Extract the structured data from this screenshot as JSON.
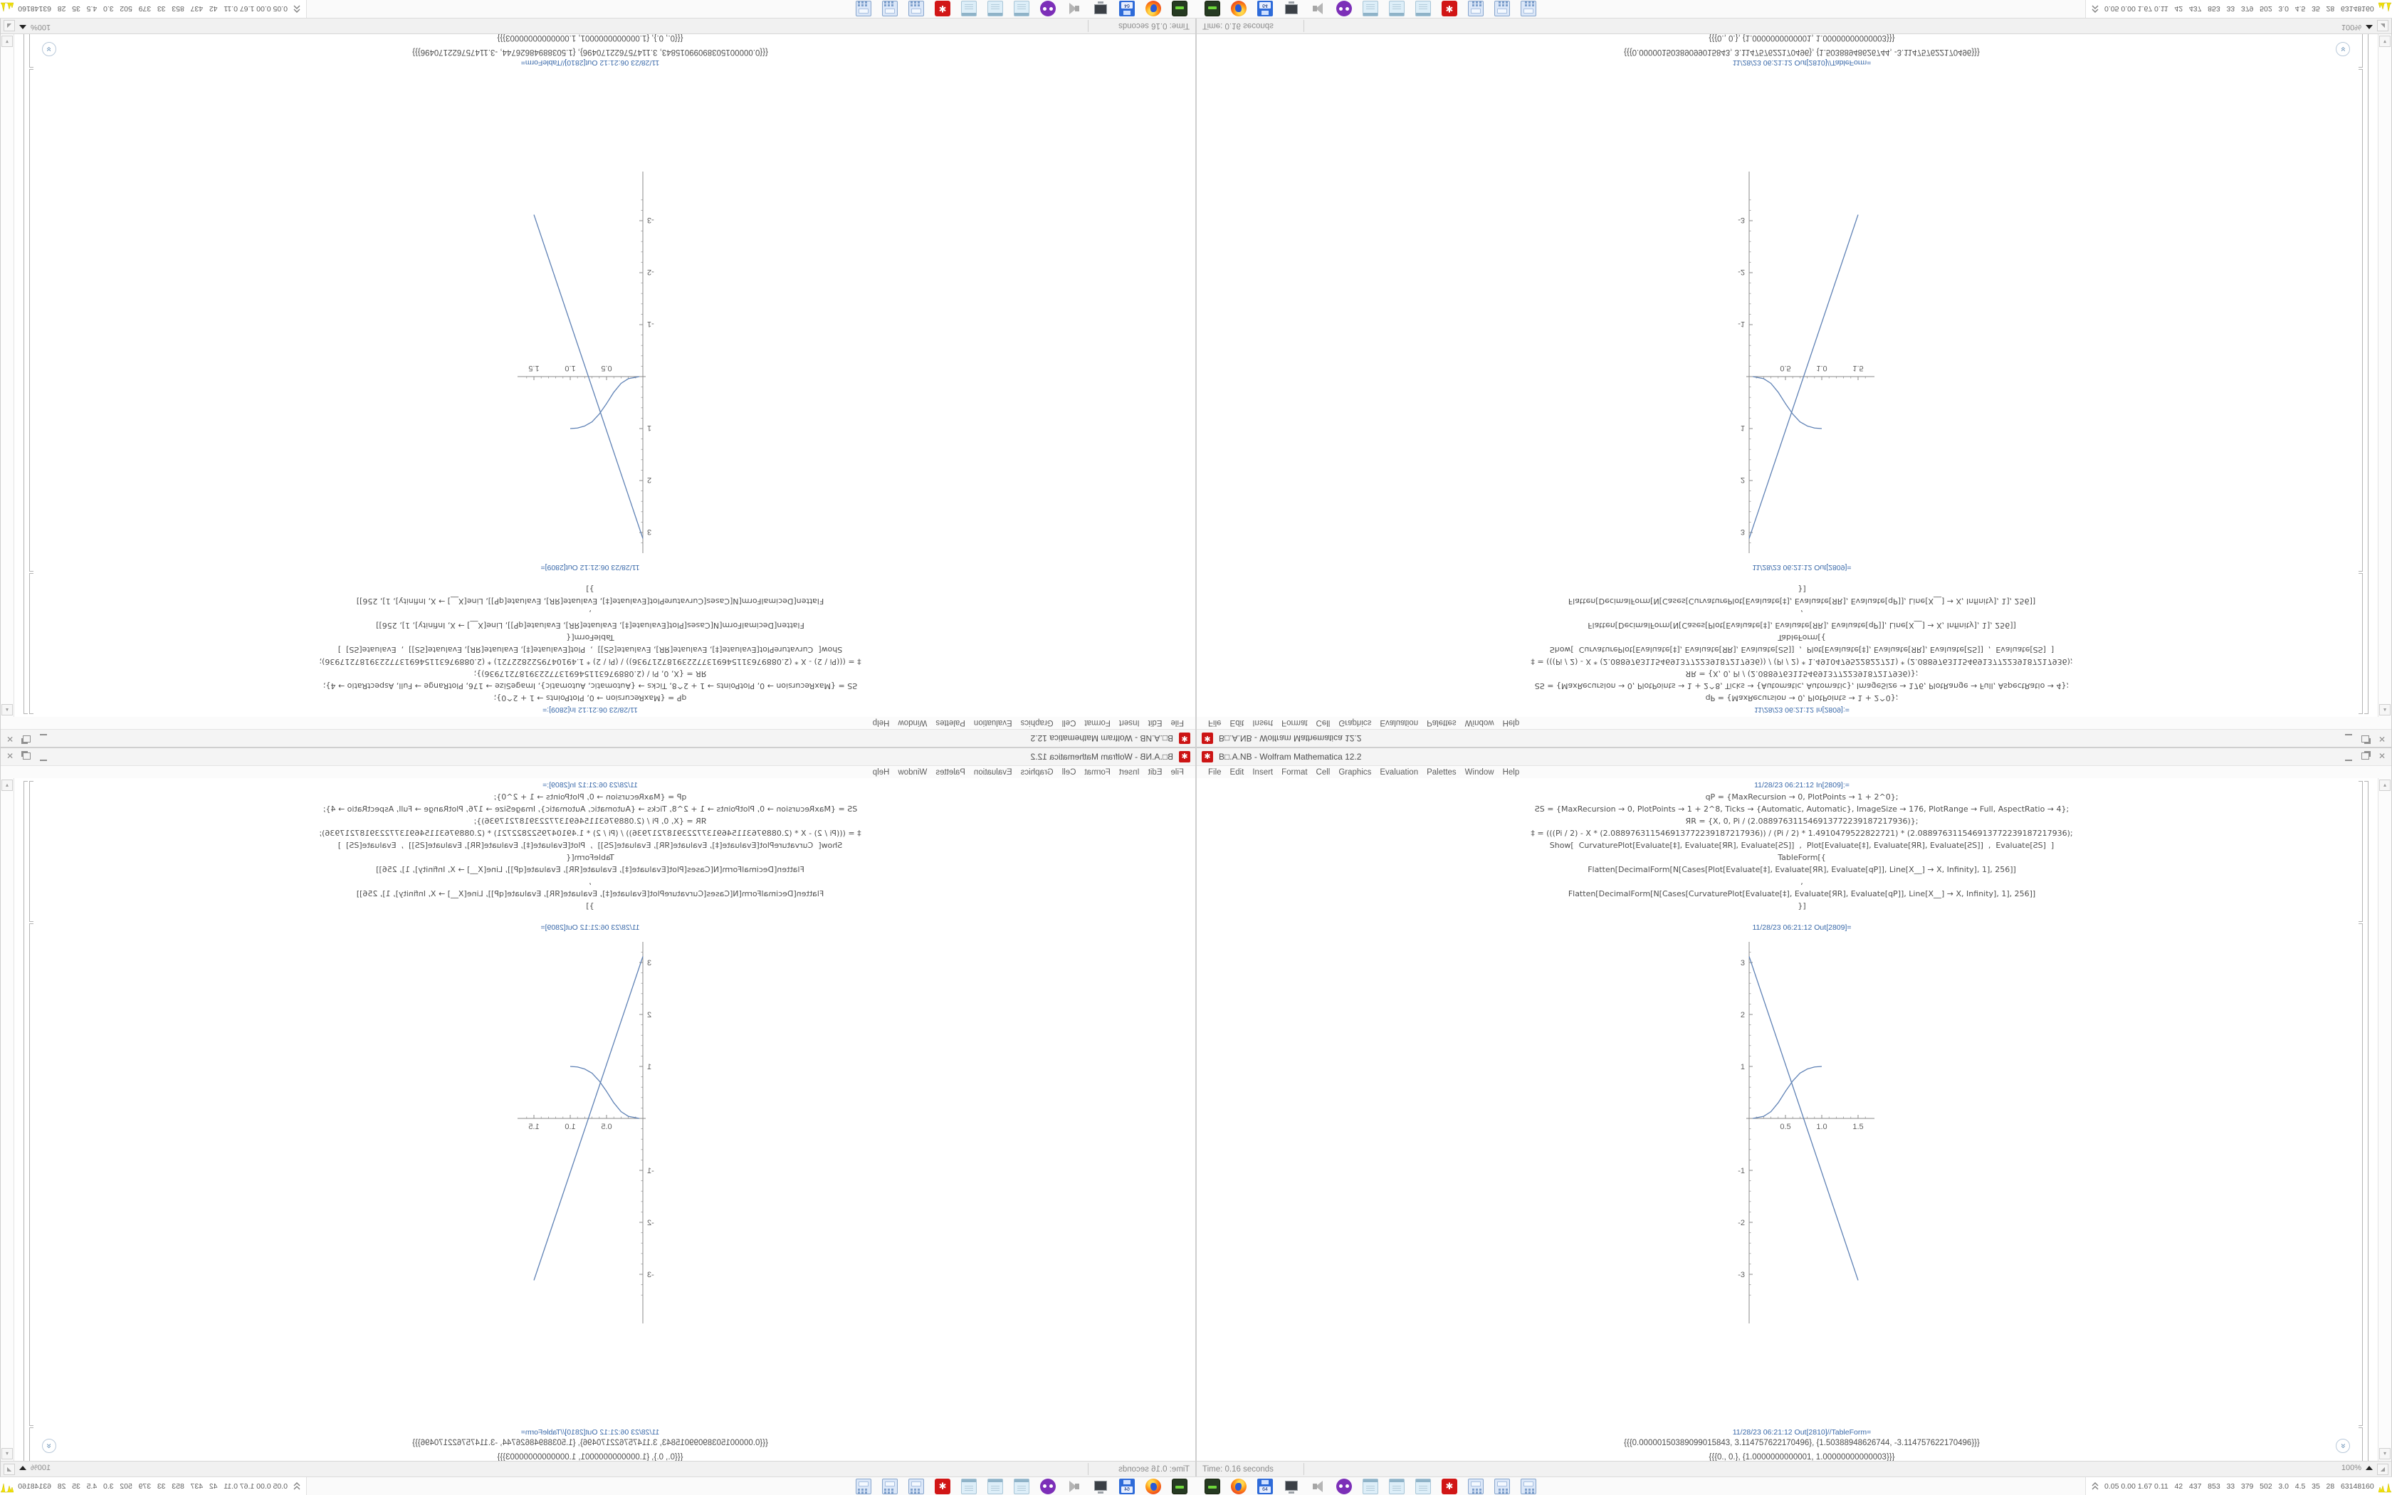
{
  "window": {
    "title": "B□.A.NB - Wolfram Mathematica 12.2",
    "app_icon": "wolfram-spikey-red-icon",
    "controls": [
      "minimize",
      "maximize",
      "close"
    ],
    "menu": [
      "File",
      "Edit",
      "Insert",
      "Format",
      "Cell",
      "Graphics",
      "Evaluation",
      "Palettes",
      "Window",
      "Help"
    ],
    "status": {
      "time_label": "Time: 0.16 seconds",
      "zoom_level": "100%"
    }
  },
  "notebook": {
    "in_label": "11/28/23 06:21:12 In[2809]:=",
    "code_lines": [
      "qP = {MaxRecursion → 0, PlotPoints → 1 + 2^0};",
      "ƧS = {MaxRecursion → 0, PlotPoints → 1 + 2^8, Ticks → {Automatic, Automatic}, ImageSize → 176, PlotRange → Full, AspectRatio → 4};",
      "ЯR = {X, 0, Pi / (2.088976311546913772239187217936)};",
      "‡ = (((Pi / 2) - X * (2.088976311546913772239187217936)) / (Pi / 2) * 1.4910479522822721) * (2.088976311546913772239187217936);",
      "Show[  CurvaturePlot[Evaluate[‡], Evaluate[ЯR], Evaluate[ƧS]]  ,  Plot[Evaluate[‡], Evaluate[ЯR], Evaluate[ƧS]]  ,  Evaluate[ƧS]  ]",
      "TableForm[{",
      "Flatten[DecimalForm[N[Cases[Plot[Evaluate[‡], Evaluate[ЯR], Evaluate[qP]], Line[X__] → X, Infinity], 1], 256]]",
      ",",
      "Flatten[DecimalForm[N[Cases[CurvaturePlot[Evaluate[‡], Evaluate[ЯR], Evaluate[qP]], Line[X__] → X, Infinity], 1], 256]]",
      "}]"
    ],
    "out_label_plot": "11/28/23 06:21:12 Out[2809]=",
    "out_label_table": "11/28/23 06:21:12 Out[2810]//TableForm=",
    "table_rows": [
      "{{{0.00000150389099015843, 3.114757622170496}, {1.50388948626744, -3.114757622170496}}}",
      "{{{0., 0.}, {1.0000000000001, 1.00000000000003}}}"
    ]
  },
  "chart_data": {
    "type": "line",
    "title": "",
    "xlabel": "",
    "ylabel": "",
    "xlim": [
      0,
      1.65
    ],
    "ylim": [
      -3.5,
      3.4
    ],
    "grid": false,
    "legend": "none",
    "x_tick_labels": [
      "0.5",
      "1.0",
      "1.5"
    ],
    "y_tick_labels": [
      "3",
      "2",
      "1",
      "-1",
      "-2",
      "-3"
    ],
    "color": "#5e81b5",
    "series": [
      {
        "name": "descending-line",
        "points": [
          [
            0,
            3.115
          ],
          [
            1.5,
            -3.115
          ]
        ]
      },
      {
        "name": "sigmoid-curve",
        "points": [
          [
            0.05,
            0
          ],
          [
            0.2,
            0.04
          ],
          [
            0.3,
            0.13
          ],
          [
            0.4,
            0.3
          ],
          [
            0.5,
            0.52
          ],
          [
            0.6,
            0.72
          ],
          [
            0.7,
            0.87
          ],
          [
            0.8,
            0.95
          ],
          [
            0.9,
            0.99
          ],
          [
            1.0,
            1.0
          ]
        ]
      }
    ]
  },
  "taskbar": {
    "floppy_label": "64",
    "launchers": [
      "storage-box-icon",
      "firefox-icon",
      "floppy-64-icon",
      "display-monitor-icon",
      "speaker-icon",
      "purple-app-icon",
      "notepad-icon",
      "notepad-icon",
      "notepad-icon",
      "wolfram-red-icon",
      "calculator-icon",
      "calculator-icon",
      "calculator-icon"
    ],
    "monitor_stats": "0.05 0.00 1.67 0.11   42   437   853   33   379   502   3.0   4.5   35   28   63148160"
  },
  "layout_note": "Desktop screenshot mirrored into four quadrants: bottom-right normal, bottom-left flipped horizontally, top-right flipped vertically, top-left rotated 180°."
}
